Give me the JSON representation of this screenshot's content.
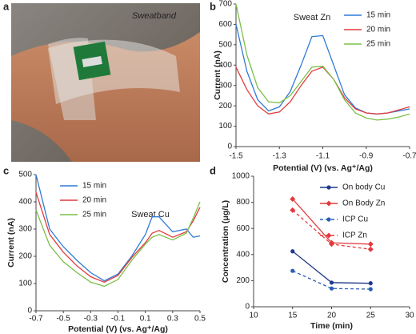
{
  "panel_labels": [
    "a",
    "b",
    "c",
    "d"
  ],
  "photo": {
    "label": "Sweatband"
  },
  "chart_data": [
    {
      "type": "line",
      "annotation": "Sweat Zn",
      "x_label": "Potential (V) (vs. Ag⁺/Ag)",
      "y_label": "Current (nA)",
      "x": [
        -1.5,
        -1.45,
        -1.4,
        -1.35,
        -1.3,
        -1.25,
        -1.2,
        -1.15,
        -1.1,
        -1.05,
        -1.0,
        -0.95,
        -0.9,
        -0.85,
        -0.8,
        -0.75,
        -0.7
      ],
      "xlim": [
        -1.5,
        -0.7
      ],
      "xticks": [
        -1.5,
        -1.3,
        -1.1,
        -0.9,
        -0.7
      ],
      "ylim": [
        0,
        700
      ],
      "yticks": [
        0,
        100,
        200,
        300,
        400,
        500,
        600,
        700
      ],
      "legend": "upper right",
      "series": [
        {
          "name": "15 min",
          "color": "#2f7bd6",
          "values": [
            600,
            370,
            230,
            175,
            195,
            270,
            400,
            540,
            545,
            400,
            255,
            190,
            165,
            160,
            165,
            175,
            185
          ]
        },
        {
          "name": "20 min",
          "color": "#e23b3f",
          "values": [
            390,
            280,
            200,
            160,
            170,
            220,
            300,
            370,
            390,
            330,
            240,
            185,
            165,
            160,
            165,
            180,
            195
          ]
        },
        {
          "name": "25 min",
          "color": "#7cbf48",
          "values": [
            700,
            450,
            290,
            220,
            215,
            250,
            320,
            390,
            395,
            330,
            230,
            165,
            140,
            130,
            135,
            145,
            160
          ]
        }
      ]
    },
    {
      "type": "line",
      "annotation": "Sweat Cu",
      "x_label": "Potential (V) (vs. Ag⁺/Ag)",
      "y_label": "Current (nA)",
      "x": [
        -0.7,
        -0.6,
        -0.5,
        -0.4,
        -0.3,
        -0.2,
        -0.1,
        0,
        0.1,
        0.15,
        0.2,
        0.3,
        0.4,
        0.45,
        0.5
      ],
      "xlim": [
        -0.7,
        0.5
      ],
      "xticks": [
        -0.7,
        -0.5,
        -0.3,
        -0.1,
        0.1,
        0.3,
        0.5
      ],
      "ylim": [
        0,
        500
      ],
      "yticks": [
        0,
        100,
        200,
        300,
        400,
        500
      ],
      "legend": "upper left",
      "series": [
        {
          "name": "15 min",
          "color": "#2f7bd6",
          "values": [
            500,
            300,
            235,
            185,
            140,
            110,
            135,
            200,
            280,
            345,
            345,
            290,
            300,
            270,
            275
          ]
        },
        {
          "name": "20 min",
          "color": "#e23b3f",
          "values": [
            435,
            280,
            215,
            165,
            125,
            105,
            130,
            195,
            250,
            285,
            295,
            270,
            290,
            330,
            380
          ]
        },
        {
          "name": "25 min",
          "color": "#7cbf48",
          "values": [
            370,
            240,
            180,
            140,
            105,
            90,
            115,
            185,
            245,
            270,
            280,
            260,
            285,
            340,
            400
          ]
        }
      ]
    },
    {
      "type": "line",
      "x_label": "Time (min)",
      "y_label": "Concentration (μg/L)",
      "x": [
        15,
        20,
        25
      ],
      "xlim": [
        10,
        30
      ],
      "xticks": [
        10,
        15,
        20,
        25,
        30
      ],
      "ylim": [
        0,
        1000
      ],
      "yticks": [
        0,
        200,
        400,
        600,
        800,
        1000
      ],
      "legend": "upper right",
      "series": [
        {
          "name": "On body Cu",
          "color": "#1f3a8a",
          "marker": "circle",
          "dashed": false,
          "values": [
            425,
            185,
            180
          ]
        },
        {
          "name": "On Body Zn",
          "color": "#e23b3f",
          "marker": "diamond",
          "dashed": false,
          "values": [
            825,
            490,
            480
          ]
        },
        {
          "name": "ICP Cu",
          "color": "#2a5db5",
          "marker": "circle",
          "dashed": true,
          "values": [
            275,
            140,
            135
          ]
        },
        {
          "name": "ICP Zn",
          "color": "#e23b3f",
          "marker": "diamond",
          "dashed": true,
          "values": [
            740,
            480,
            440
          ]
        }
      ]
    }
  ]
}
